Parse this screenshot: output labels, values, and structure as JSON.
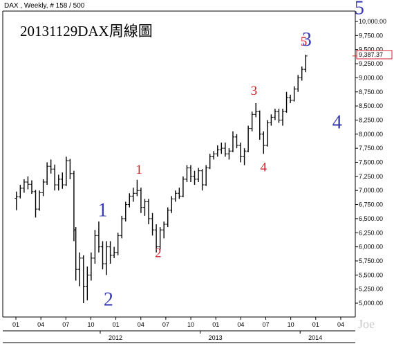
{
  "chart_data": {
    "type": "bar",
    "subtype": "ohlc",
    "header": "DAX , Weekly, # 158 / 500",
    "title": "20131129DAX周線圖",
    "y_ticks": [
      "5,000.00",
      "5,250.00",
      "5,500.00",
      "5,750.00",
      "6,000.00",
      "6,250.00",
      "6,500.00",
      "6,750.00",
      "7,000.00",
      "7,250.00",
      "7,500.00",
      "7,750.00",
      "8,000.00",
      "8,250.00",
      "8,500.00",
      "8,750.00",
      "9,000.00",
      "9,250.00",
      "9,500.00",
      "9,750.00",
      "10,000.00"
    ],
    "ylim": [
      4850,
      10150
    ],
    "x_ticks": [
      "01",
      "04",
      "07",
      "10",
      "01",
      "04",
      "07",
      "10",
      "01",
      "04",
      "07",
      "10",
      "01",
      "04"
    ],
    "years": [
      "2012",
      "2013",
      "2014"
    ],
    "last_price": "9,387.37",
    "last_value": 9387.37,
    "watermark": "Joe",
    "waves": [
      {
        "label": "1",
        "color": "#3a3ab4",
        "date": "2011-11-14",
        "value": 6540
      },
      {
        "label": "2",
        "color": "#3a3ab4",
        "date": "2011-12-05",
        "value": 4960
      },
      {
        "label": "1",
        "color": "#d21e28",
        "date": "2012-03-26",
        "value": 7300
      },
      {
        "label": "2",
        "color": "#d21e28",
        "date": "2012-06-04",
        "value": 5820
      },
      {
        "label": "3",
        "color": "#d21e28",
        "date": "2013-05-20",
        "value": 8700
      },
      {
        "label": "4",
        "color": "#d21e28",
        "date": "2013-06-24",
        "value": 7340
      },
      {
        "label": "5",
        "color": "#d21e28",
        "date": "2013-11-18",
        "value": 9570
      },
      {
        "label": "3",
        "color": "#3a3ab4",
        "date": "2013-11-29",
        "value": 9570
      },
      {
        "label": "4",
        "color": "#3a3ab4",
        "date": "2014-03-20",
        "value": 8100
      },
      {
        "label": "5",
        "color": "#3a3ab4",
        "date": "2014-06-09",
        "value": 10130
      }
    ],
    "ohlc": [
      {
        "date": "2011-01-03",
        "o": 6860,
        "h": 6980,
        "l": 6650,
        "c": 6890
      },
      {
        "date": "2011-01-17",
        "o": 6890,
        "h": 7100,
        "l": 6860,
        "c": 7040
      },
      {
        "date": "2011-01-31",
        "o": 7040,
        "h": 7200,
        "l": 6960,
        "c": 7150
      },
      {
        "date": "2011-02-14",
        "o": 7150,
        "h": 7250,
        "l": 7020,
        "c": 7110
      },
      {
        "date": "2011-02-28",
        "o": 7110,
        "h": 7180,
        "l": 6940,
        "c": 6980
      },
      {
        "date": "2011-03-14",
        "o": 6980,
        "h": 7010,
        "l": 6520,
        "c": 6670
      },
      {
        "date": "2011-03-28",
        "o": 6670,
        "h": 7000,
        "l": 6640,
        "c": 6960
      },
      {
        "date": "2011-04-11",
        "o": 6960,
        "h": 7200,
        "l": 6900,
        "c": 7150
      },
      {
        "date": "2011-04-25",
        "o": 7150,
        "h": 7500,
        "l": 7100,
        "c": 7430
      },
      {
        "date": "2011-05-09",
        "o": 7430,
        "h": 7550,
        "l": 7300,
        "c": 7380
      },
      {
        "date": "2011-05-23",
        "o": 7380,
        "h": 7460,
        "l": 7000,
        "c": 7100
      },
      {
        "date": "2011-06-06",
        "o": 7100,
        "h": 7280,
        "l": 7000,
        "c": 7200
      },
      {
        "date": "2011-06-20",
        "o": 7200,
        "h": 7320,
        "l": 7030,
        "c": 7100
      },
      {
        "date": "2011-07-04",
        "o": 7100,
        "h": 7600,
        "l": 7080,
        "c": 7530
      },
      {
        "date": "2011-07-18",
        "o": 7530,
        "h": 7560,
        "l": 7200,
        "c": 7300
      },
      {
        "date": "2011-08-01",
        "o": 7300,
        "h": 7350,
        "l": 6100,
        "c": 6300
      },
      {
        "date": "2011-08-08",
        "o": 6300,
        "h": 6350,
        "l": 5400,
        "c": 5600
      },
      {
        "date": "2011-08-22",
        "o": 5600,
        "h": 5900,
        "l": 5300,
        "c": 5800
      },
      {
        "date": "2011-09-05",
        "o": 5800,
        "h": 5850,
        "l": 5000,
        "c": 5300
      },
      {
        "date": "2011-09-19",
        "o": 5300,
        "h": 5650,
        "l": 5050,
        "c": 5500
      },
      {
        "date": "2011-10-03",
        "o": 5500,
        "h": 5900,
        "l": 5400,
        "c": 5800
      },
      {
        "date": "2011-10-17",
        "o": 5800,
        "h": 6300,
        "l": 5700,
        "c": 6200
      },
      {
        "date": "2011-10-31",
        "o": 6200,
        "h": 6450,
        "l": 5900,
        "c": 6000
      },
      {
        "date": "2011-11-14",
        "o": 6000,
        "h": 6100,
        "l": 5600,
        "c": 5700
      },
      {
        "date": "2011-11-28",
        "o": 5700,
        "h": 6100,
        "l": 5500,
        "c": 6000
      },
      {
        "date": "2011-12-12",
        "o": 6000,
        "h": 6100,
        "l": 5700,
        "c": 5850
      },
      {
        "date": "2011-12-26",
        "o": 5850,
        "h": 6000,
        "l": 5800,
        "c": 5900
      },
      {
        "date": "2012-01-09",
        "o": 5900,
        "h": 6250,
        "l": 5850,
        "c": 6200
      },
      {
        "date": "2012-01-23",
        "o": 6200,
        "h": 6550,
        "l": 6150,
        "c": 6500
      },
      {
        "date": "2012-02-06",
        "o": 6500,
        "h": 6800,
        "l": 6450,
        "c": 6750
      },
      {
        "date": "2012-02-20",
        "o": 6750,
        "h": 6950,
        "l": 6700,
        "c": 6900
      },
      {
        "date": "2012-03-05",
        "o": 6900,
        "h": 7050,
        "l": 6800,
        "c": 6950
      },
      {
        "date": "2012-03-19",
        "o": 6950,
        "h": 7190,
        "l": 6900,
        "c": 7000
      },
      {
        "date": "2012-04-02",
        "o": 7000,
        "h": 7050,
        "l": 6600,
        "c": 6700
      },
      {
        "date": "2012-04-16",
        "o": 6700,
        "h": 6850,
        "l": 6550,
        "c": 6800
      },
      {
        "date": "2012-04-30",
        "o": 6800,
        "h": 6850,
        "l": 6400,
        "c": 6500
      },
      {
        "date": "2012-05-14",
        "o": 6500,
        "h": 6600,
        "l": 6200,
        "c": 6300
      },
      {
        "date": "2012-05-28",
        "o": 6300,
        "h": 6400,
        "l": 5900,
        "c": 6000
      },
      {
        "date": "2012-06-11",
        "o": 6000,
        "h": 6350,
        "l": 5950,
        "c": 6300
      },
      {
        "date": "2012-06-25",
        "o": 6300,
        "h": 6450,
        "l": 6150,
        "c": 6400
      },
      {
        "date": "2012-07-09",
        "o": 6400,
        "h": 6700,
        "l": 6350,
        "c": 6650
      },
      {
        "date": "2012-07-23",
        "o": 6650,
        "h": 6900,
        "l": 6600,
        "c": 6850
      },
      {
        "date": "2012-08-06",
        "o": 6850,
        "h": 7000,
        "l": 6800,
        "c": 6950
      },
      {
        "date": "2012-08-20",
        "o": 6950,
        "h": 7050,
        "l": 6850,
        "c": 6900
      },
      {
        "date": "2012-09-03",
        "o": 6900,
        "h": 7250,
        "l": 6880,
        "c": 7200
      },
      {
        "date": "2012-09-17",
        "o": 7200,
        "h": 7450,
        "l": 7150,
        "c": 7400
      },
      {
        "date": "2012-10-01",
        "o": 7400,
        "h": 7450,
        "l": 7150,
        "c": 7250
      },
      {
        "date": "2012-10-15",
        "o": 7250,
        "h": 7350,
        "l": 7100,
        "c": 7200
      },
      {
        "date": "2012-10-29",
        "o": 7200,
        "h": 7400,
        "l": 7150,
        "c": 7350
      },
      {
        "date": "2012-11-12",
        "o": 7350,
        "h": 7380,
        "l": 7000,
        "c": 7100
      },
      {
        "date": "2012-11-26",
        "o": 7100,
        "h": 7450,
        "l": 7080,
        "c": 7400
      },
      {
        "date": "2012-12-10",
        "o": 7400,
        "h": 7650,
        "l": 7380,
        "c": 7600
      },
      {
        "date": "2012-12-24",
        "o": 7600,
        "h": 7700,
        "l": 7550,
        "c": 7650
      },
      {
        "date": "2013-01-07",
        "o": 7650,
        "h": 7800,
        "l": 7600,
        "c": 7720
      },
      {
        "date": "2013-01-21",
        "o": 7720,
        "h": 7850,
        "l": 7650,
        "c": 7750
      },
      {
        "date": "2013-02-04",
        "o": 7750,
        "h": 7850,
        "l": 7600,
        "c": 7650
      },
      {
        "date": "2013-02-18",
        "o": 7650,
        "h": 7750,
        "l": 7550,
        "c": 7700
      },
      {
        "date": "2013-03-04",
        "o": 7700,
        "h": 8050,
        "l": 7680,
        "c": 7950
      },
      {
        "date": "2013-03-18",
        "o": 7950,
        "h": 8000,
        "l": 7750,
        "c": 7800
      },
      {
        "date": "2013-04-01",
        "o": 7800,
        "h": 7850,
        "l": 7500,
        "c": 7600
      },
      {
        "date": "2013-04-15",
        "o": 7600,
        "h": 7750,
        "l": 7450,
        "c": 7700
      },
      {
        "date": "2013-04-29",
        "o": 7700,
        "h": 8150,
        "l": 7680,
        "c": 8100
      },
      {
        "date": "2013-05-13",
        "o": 8100,
        "h": 8400,
        "l": 8050,
        "c": 8350
      },
      {
        "date": "2013-05-27",
        "o": 8350,
        "h": 8550,
        "l": 8300,
        "c": 8400
      },
      {
        "date": "2013-06-10",
        "o": 8400,
        "h": 8420,
        "l": 7900,
        "c": 8000
      },
      {
        "date": "2013-06-24",
        "o": 8000,
        "h": 8050,
        "l": 7650,
        "c": 7800
      },
      {
        "date": "2013-07-08",
        "o": 7800,
        "h": 8250,
        "l": 7780,
        "c": 8200
      },
      {
        "date": "2013-07-22",
        "o": 8200,
        "h": 8350,
        "l": 8150,
        "c": 8300
      },
      {
        "date": "2013-08-05",
        "o": 8300,
        "h": 8450,
        "l": 8250,
        "c": 8400
      },
      {
        "date": "2013-08-19",
        "o": 8400,
        "h": 8450,
        "l": 8200,
        "c": 8250
      },
      {
        "date": "2013-09-02",
        "o": 8250,
        "h": 8450,
        "l": 8150,
        "c": 8400
      },
      {
        "date": "2013-09-16",
        "o": 8400,
        "h": 8750,
        "l": 8380,
        "c": 8650
      },
      {
        "date": "2013-09-30",
        "o": 8650,
        "h": 8700,
        "l": 8550,
        "c": 8600
      },
      {
        "date": "2013-10-14",
        "o": 8600,
        "h": 8850,
        "l": 8580,
        "c": 8800
      },
      {
        "date": "2013-10-28",
        "o": 8800,
        "h": 9050,
        "l": 8750,
        "c": 9000
      },
      {
        "date": "2013-11-11",
        "o": 9000,
        "h": 9200,
        "l": 8950,
        "c": 9150
      },
      {
        "date": "2013-11-25",
        "o": 9150,
        "h": 9410,
        "l": 9100,
        "c": 9387
      }
    ]
  }
}
